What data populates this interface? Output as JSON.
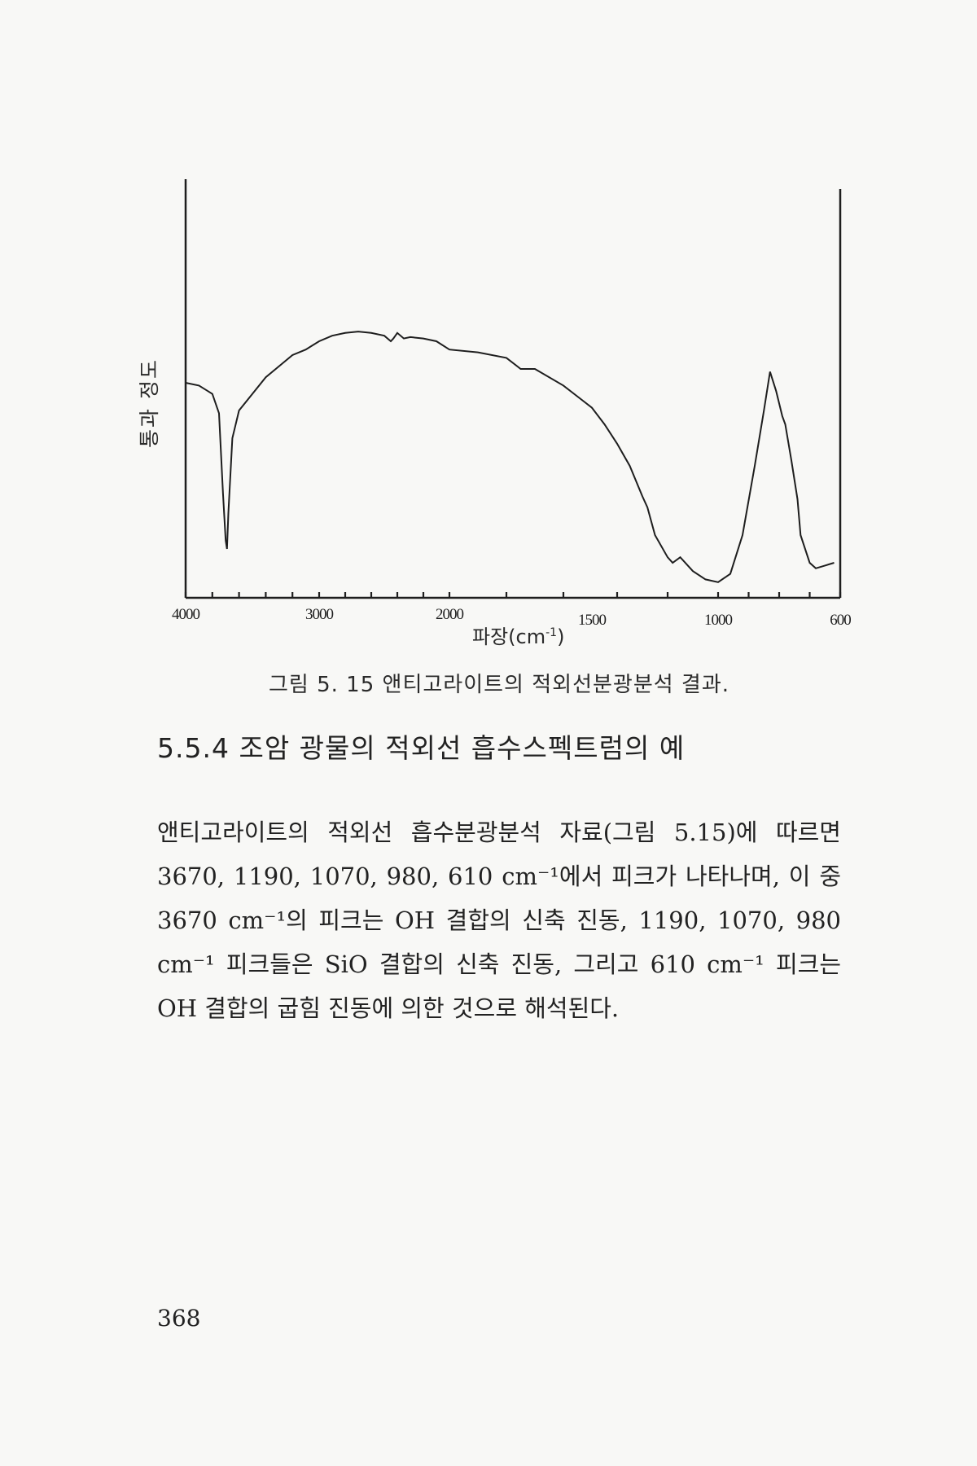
{
  "chart_data": {
    "type": "line",
    "title": "",
    "xlabel": "파장(cm",
    "xlabel_sup": "-1",
    "xlabel_close": ")",
    "ylabel": "통과 정도",
    "x_ticks": [
      "4000",
      "3000",
      "2000",
      "1500",
      "1000",
      "600"
    ],
    "x_axis": {
      "scale": "piecewise-linear (compressed below 2000 cm-1)",
      "direction": "decreasing",
      "range": [
        4000,
        600
      ]
    },
    "y_axis": {
      "range": [
        0,
        100
      ],
      "ticks": "none",
      "unit": "relative transmittance"
    },
    "grid": false,
    "legend": "none",
    "series": [
      {
        "points": [
          [
            4000,
            75
          ],
          [
            3900,
            74
          ],
          [
            3800,
            71
          ],
          [
            3750,
            64
          ],
          [
            3720,
            35
          ],
          [
            3700,
            18
          ],
          [
            3690,
            15
          ],
          [
            3680,
            28
          ],
          [
            3650,
            55
          ],
          [
            3600,
            65
          ],
          [
            3500,
            71
          ],
          [
            3400,
            77
          ],
          [
            3300,
            81
          ],
          [
            3200,
            85
          ],
          [
            3100,
            87
          ],
          [
            3000,
            90
          ],
          [
            2900,
            92
          ],
          [
            2800,
            93
          ],
          [
            2700,
            93.5
          ],
          [
            2600,
            93
          ],
          [
            2500,
            92
          ],
          [
            2450,
            90
          ],
          [
            2430,
            91
          ],
          [
            2400,
            93
          ],
          [
            2350,
            91
          ],
          [
            2300,
            91.5
          ],
          [
            2200,
            91
          ],
          [
            2100,
            90
          ],
          [
            2000,
            87
          ],
          [
            1900,
            86
          ],
          [
            1800,
            84
          ],
          [
            1750,
            80
          ],
          [
            1700,
            80
          ],
          [
            1600,
            74
          ],
          [
            1550,
            70
          ],
          [
            1500,
            66
          ],
          [
            1450,
            60
          ],
          [
            1400,
            53
          ],
          [
            1350,
            45
          ],
          [
            1300,
            34
          ],
          [
            1280,
            30
          ],
          [
            1250,
            20
          ],
          [
            1200,
            12
          ],
          [
            1180,
            10
          ],
          [
            1150,
            12
          ],
          [
            1100,
            7
          ],
          [
            1050,
            4
          ],
          [
            1000,
            3
          ],
          [
            960,
            6
          ],
          [
            920,
            20
          ],
          [
            880,
            45
          ],
          [
            850,
            65
          ],
          [
            830,
            79
          ],
          [
            810,
            72
          ],
          [
            790,
            63
          ],
          [
            780,
            60
          ],
          [
            760,
            47
          ],
          [
            740,
            33
          ],
          [
            730,
            20
          ],
          [
            700,
            10
          ],
          [
            680,
            8
          ],
          [
            650,
            9
          ],
          [
            620,
            10
          ]
        ]
      }
    ]
  },
  "figure": {
    "caption": "그림 5. 15  앤티고라이트의 적외선분광분석 결과."
  },
  "section": {
    "heading": "5.5.4 조암 광물의 적외선 흡수스펙트럼의 예",
    "paragraph": "앤티고라이트의 적외선 흡수분광분석 자료(그림 5.15)에 따르면 3670, 1190, 1070, 980, 610 cm⁻¹에서 피크가 나타나며, 이 중 3670 cm⁻¹의 피크는 OH 결합의 신축 진동, 1190, 1070, 980 cm⁻¹ 피크들은 SiO 결합의 신축 진동, 그리고 610 cm⁻¹ 피크는 OH 결합의 굽힘 진동에 의한 것으로 해석된다."
  },
  "page": {
    "number": "368"
  },
  "colors": {
    "ink": "#222222",
    "paper": "#f8f8f6"
  }
}
